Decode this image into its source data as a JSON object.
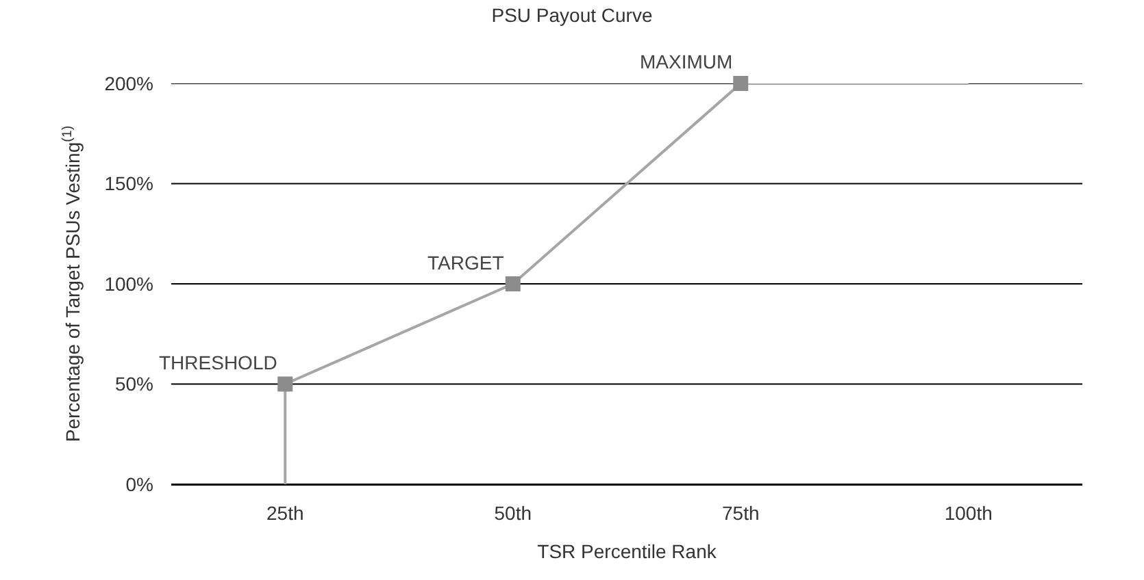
{
  "chart_data": {
    "type": "line",
    "title": "PSU Payout Curve",
    "xlabel": "TSR Percentile Rank",
    "ylabel": "Percentage of Target PSUs Vesting$^{(1)}$",
    "categories": [
      "25th",
      "50th",
      "75th",
      "100th"
    ],
    "series": [
      {
        "color": "#a6a6a6",
        "x": [
          "25th",
          "25th",
          "50th",
          "75th",
          "100th"
        ],
        "values": [
          0,
          50,
          100,
          200,
          200
        ],
        "marker": "none"
      },
      {
        "type": "scatter",
        "color": "#8c8c8c",
        "x": [
          "25th",
          "50th",
          "75th"
        ],
        "values": [
          50,
          100,
          200
        ],
        "marker": "square"
      }
    ],
    "annotations": [
      {
        "text": "THRESHOLD",
        "x": "25th",
        "y": 50
      },
      {
        "text": "TARGET",
        "x": "50th",
        "y": 100
      },
      {
        "text": "MAXIMUM",
        "x": "75th",
        "y": 200
      }
    ],
    "ylim": [
      0,
      200
    ],
    "yticks": [
      {
        "value": 0,
        "label": "0%"
      },
      {
        "value": 50,
        "label": "50%"
      },
      {
        "value": 100,
        "label": "100%"
      },
      {
        "value": 150,
        "label": "150%"
      },
      {
        "value": 200,
        "label": "200%"
      }
    ],
    "grid": "y"
  }
}
